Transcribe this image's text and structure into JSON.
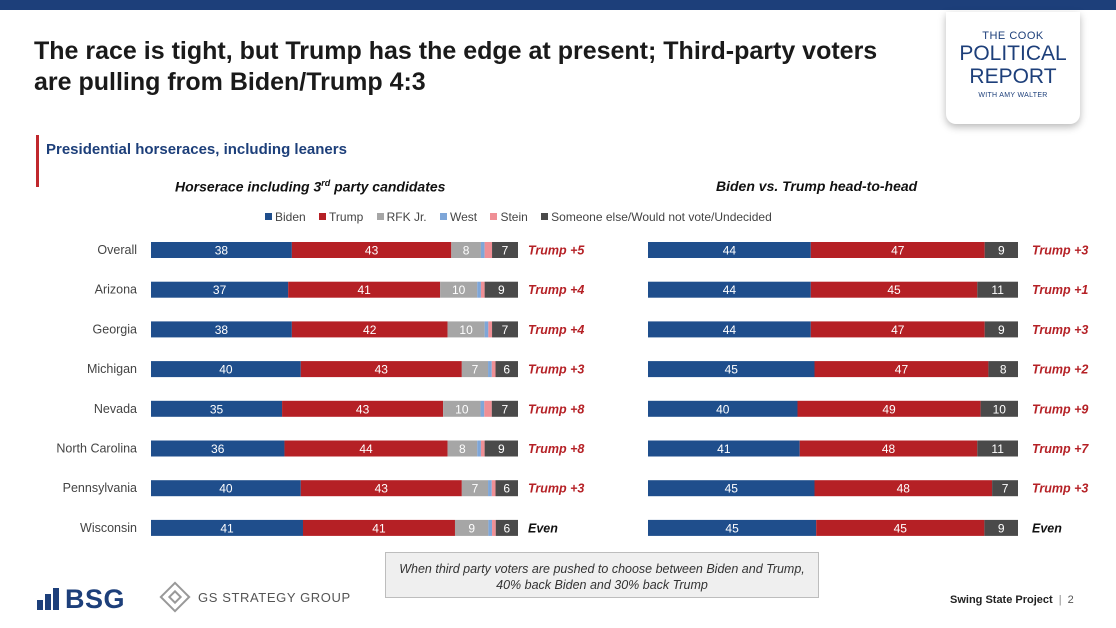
{
  "title": "The race is tight, but Trump has the edge at present; Third-party voters are pulling from Biden/Trump 4:3",
  "subtitle": "Presidential horseraces, including leaners",
  "logo": {
    "line1": "THE COOK",
    "line2": "POLITICAL",
    "line3": "REPORT",
    "line4": "WITH AMY WALTER"
  },
  "panels": {
    "left_title": "Horserace including 3",
    "left_title_sup": "rd",
    "left_title_end": " party candidates",
    "right_title": "Biden vs. Trump head-to-head"
  },
  "legend": [
    {
      "label": "Biden",
      "color": "#1f4e8c"
    },
    {
      "label": "Trump",
      "color": "#b52025"
    },
    {
      "label": "RFK Jr.",
      "color": "#a6a6a6"
    },
    {
      "label": "West",
      "color": "#7ea6d8"
    },
    {
      "label": "Stein",
      "color": "#ef8f95"
    },
    {
      "label": "Someone else/Would not vote/Undecided",
      "color": "#4a4a4a"
    }
  ],
  "note": "When third party voters are pushed to choose between Biden and Trump, 40% back Biden and 30% back Trump",
  "brand": {
    "bsg": "BSG",
    "gs": "GS STRATEGY GROUP"
  },
  "footer": {
    "project": "Swing State Project",
    "page": "2"
  },
  "chart_data": [
    {
      "type": "bar",
      "stacked": true,
      "orientation": "horizontal",
      "title": "Horserace including 3rd party candidates",
      "categories": [
        "Overall",
        "Arizona",
        "Georgia",
        "Michigan",
        "Nevada",
        "North Carolina",
        "Pennsylvania",
        "Wisconsin"
      ],
      "series": [
        {
          "name": "Biden",
          "values": [
            38,
            37,
            38,
            40,
            35,
            36,
            40,
            41
          ]
        },
        {
          "name": "Trump",
          "values": [
            43,
            41,
            42,
            43,
            43,
            44,
            43,
            41
          ]
        },
        {
          "name": "RFK Jr.",
          "values": [
            8,
            10,
            10,
            7,
            10,
            8,
            7,
            9
          ]
        },
        {
          "name": "West",
          "values": [
            1,
            1,
            1,
            1,
            1,
            1,
            1,
            1
          ]
        },
        {
          "name": "Stein",
          "values": [
            2,
            1,
            1,
            1,
            2,
            1,
            1,
            1
          ]
        },
        {
          "name": "Someone else/Would not vote/Undecided",
          "values": [
            7,
            9,
            7,
            6,
            7,
            9,
            6,
            6
          ]
        }
      ],
      "margins": [
        "Trump +5",
        "Trump +4",
        "Trump +4",
        "Trump +3",
        "Trump +8",
        "Trump +8",
        "Trump +3",
        "Even"
      ]
    },
    {
      "type": "bar",
      "stacked": true,
      "orientation": "horizontal",
      "title": "Biden vs. Trump head-to-head",
      "categories": [
        "Overall",
        "Arizona",
        "Georgia",
        "Michigan",
        "Nevada",
        "North Carolina",
        "Pennsylvania",
        "Wisconsin"
      ],
      "series": [
        {
          "name": "Biden",
          "values": [
            44,
            44,
            44,
            45,
            40,
            41,
            45,
            45
          ]
        },
        {
          "name": "Trump",
          "values": [
            47,
            45,
            47,
            47,
            49,
            48,
            48,
            45
          ]
        },
        {
          "name": "Someone else/Would not vote/Undecided",
          "values": [
            9,
            11,
            9,
            8,
            10,
            11,
            7,
            9
          ]
        }
      ],
      "margins": [
        "Trump +3",
        "Trump +1",
        "Trump +3",
        "Trump +2",
        "Trump +9",
        "Trump +7",
        "Trump +3",
        "Even"
      ]
    }
  ]
}
